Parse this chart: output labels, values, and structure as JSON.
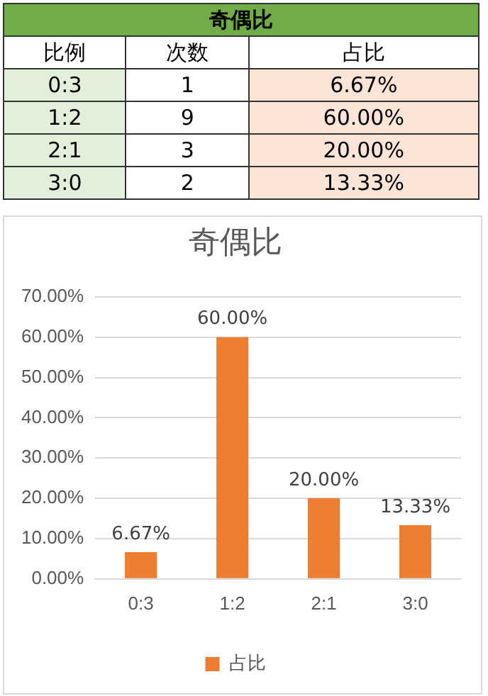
{
  "chart_data": [
    {
      "type": "other",
      "title": "奇偶比",
      "annotations": [
        "比例",
        "次数",
        "占比",
        "0:3",
        "1",
        "6.67%",
        "1:2",
        "9",
        "60.00%",
        "2:1",
        "3",
        "20.00%",
        "3:0",
        "2",
        "13.33%"
      ]
    },
    {
      "type": "bar",
      "title": "奇偶比",
      "categories": [
        "0:3",
        "1:2",
        "2:1",
        "3:0"
      ],
      "series": [
        {
          "name": "占比",
          "color": "#ed7d31",
          "values": [
            6.67,
            60,
            20,
            13.33
          ]
        }
      ],
      "value_labels": [
        "6.67%",
        "60.00%",
        "20.00%",
        "13.33%"
      ],
      "ylim": [
        0,
        70
      ],
      "yticks": [
        {
          "value": 0,
          "label": "0.00%"
        },
        {
          "value": 10,
          "label": "10.00%"
        },
        {
          "value": 20,
          "label": "20.00%"
        },
        {
          "value": 30,
          "label": "30.00%"
        },
        {
          "value": 40,
          "label": "40.00%"
        },
        {
          "value": 50,
          "label": "50.00%"
        },
        {
          "value": 60,
          "label": "60.00%"
        },
        {
          "value": 70,
          "label": "70.00%"
        }
      ],
      "grid": "y",
      "legend": "bottom"
    }
  ]
}
